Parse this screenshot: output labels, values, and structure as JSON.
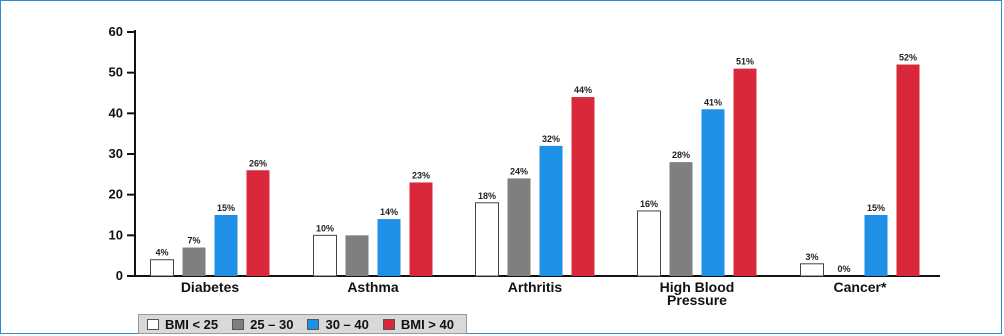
{
  "chart_data": {
    "type": "bar",
    "title": "",
    "xlabel": "",
    "ylabel": "",
    "ylim": [
      0,
      60
    ],
    "yticks": [
      0,
      10,
      20,
      30,
      40,
      50,
      60
    ],
    "categories": [
      [
        "Diabetes"
      ],
      [
        "Asthma"
      ],
      [
        "Arthritis"
      ],
      [
        "High Blood",
        "Pressure"
      ],
      [
        "Cancer*"
      ]
    ],
    "series": [
      {
        "name": "BMI < 25",
        "color": "#ffffff",
        "values": [
          4,
          10,
          18,
          16,
          3
        ],
        "labels": [
          "4%",
          "10%",
          "18%",
          "16%",
          "3%"
        ]
      },
      {
        "name": "25 – 30",
        "color": "#7f7f7f",
        "values": [
          7,
          10,
          24,
          28,
          0
        ],
        "labels": [
          "7%",
          "",
          "24%",
          "28%",
          "0%"
        ]
      },
      {
        "name": "30 – 40",
        "color": "#1e90e6",
        "values": [
          15,
          14,
          32,
          41,
          15
        ],
        "labels": [
          "15%",
          "14%",
          "32%",
          "41%",
          "15%"
        ]
      },
      {
        "name": "BMI > 40",
        "color": "#d9283a",
        "values": [
          26,
          23,
          44,
          51,
          52
        ],
        "labels": [
          "26%",
          "23%",
          "44%",
          "51%",
          "52%"
        ]
      }
    ],
    "grid": false,
    "legend_position": "bottom-left"
  }
}
